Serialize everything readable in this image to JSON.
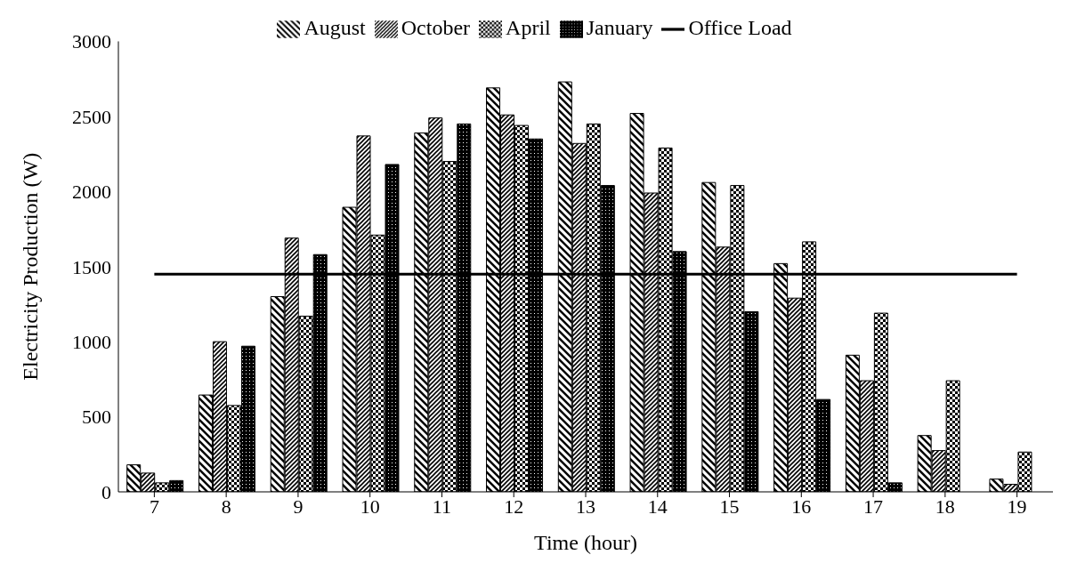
{
  "chart_data": {
    "type": "bar",
    "xlabel": "Time (hour)",
    "ylabel": "Electricity Production (W)",
    "categories": [
      "7",
      "8",
      "9",
      "10",
      "11",
      "12",
      "13",
      "14",
      "15",
      "16",
      "17",
      "18",
      "19"
    ],
    "series": [
      {
        "name": "August",
        "color": "#000000",
        "values": [
          180,
          645,
          1300,
          1895,
          2390,
          2690,
          2730,
          2520,
          2060,
          1520,
          910,
          375,
          85
        ]
      },
      {
        "name": "October",
        "color": "#000000",
        "values": [
          125,
          1000,
          1690,
          2370,
          2490,
          2510,
          2320,
          1990,
          1630,
          1290,
          740,
          275,
          50
        ]
      },
      {
        "name": "April",
        "color": "#000000",
        "values": [
          60,
          575,
          1170,
          1710,
          2200,
          2440,
          2450,
          2290,
          2040,
          1665,
          1190,
          740,
          265
        ]
      },
      {
        "name": "January",
        "color": "#000000",
        "values": [
          75,
          970,
          1580,
          2180,
          2450,
          2350,
          2040,
          1600,
          1200,
          615,
          60,
          0,
          0
        ]
      },
      {
        "name": "Office Load",
        "type": "line",
        "color": "#000000",
        "values": [
          1450,
          1450,
          1450,
          1450,
          1450,
          1450,
          1450,
          1450,
          1450,
          1450,
          1450,
          1450,
          1450
        ]
      }
    ],
    "ylim": [
      0,
      3000
    ],
    "yticks": [
      0,
      500,
      1000,
      1500,
      2000,
      2500,
      3000
    ],
    "legend": "top",
    "marker": "none",
    "line_style": "solid"
  }
}
